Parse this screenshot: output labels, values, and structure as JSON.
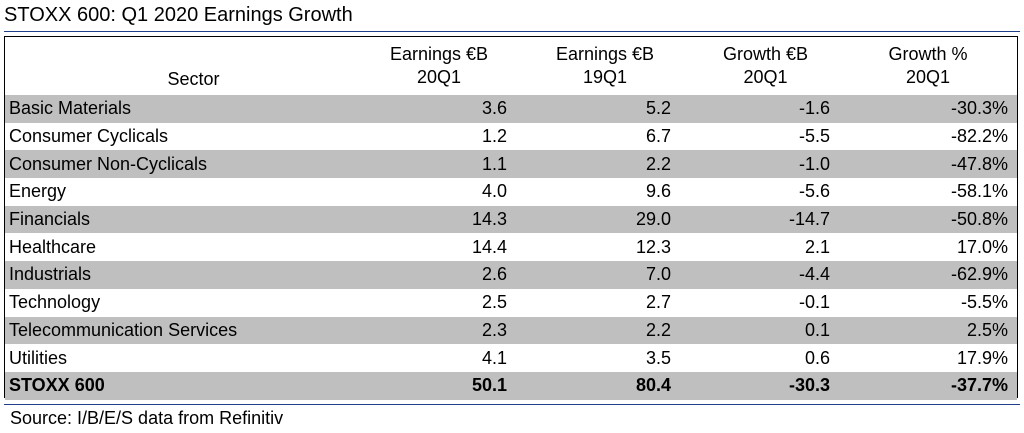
{
  "title": "STOXX 600: Q1 2020 Earnings Growth",
  "table": {
    "headers": {
      "sector": "Sector",
      "earnings_20q1": [
        "Earnings €B",
        "20Q1"
      ],
      "earnings_19q1": [
        "Earnings €B",
        "19Q1"
      ],
      "growth_eur": [
        "Growth €B",
        "20Q1"
      ],
      "growth_pct": [
        "Growth %",
        "20Q1"
      ]
    },
    "rows": [
      {
        "sector": "Basic Materials",
        "e20": "3.6",
        "e19": "5.2",
        "g": "-1.6",
        "gp": "-30.3%"
      },
      {
        "sector": "Consumer Cyclicals",
        "e20": "1.2",
        "e19": "6.7",
        "g": "-5.5",
        "gp": "-82.2%"
      },
      {
        "sector": "Consumer Non-Cyclicals",
        "e20": "1.1",
        "e19": "2.2",
        "g": "-1.0",
        "gp": "-47.8%"
      },
      {
        "sector": "Energy",
        "e20": "4.0",
        "e19": "9.6",
        "g": "-5.6",
        "gp": "-58.1%"
      },
      {
        "sector": "Financials",
        "e20": "14.3",
        "e19": "29.0",
        "g": "-14.7",
        "gp": "-50.8%"
      },
      {
        "sector": "Healthcare",
        "e20": "14.4",
        "e19": "12.3",
        "g": "2.1",
        "gp": "17.0%"
      },
      {
        "sector": "Industrials",
        "e20": "2.6",
        "e19": "7.0",
        "g": "-4.4",
        "gp": "-62.9%"
      },
      {
        "sector": "Technology",
        "e20": "2.5",
        "e19": "2.7",
        "g": "-0.1",
        "gp": "-5.5%"
      },
      {
        "sector": "Telecommunication Services",
        "e20": "2.3",
        "e19": "2.2",
        "g": "0.1",
        "gp": "2.5%"
      },
      {
        "sector": "Utilities",
        "e20": "4.1",
        "e19": "3.5",
        "g": "0.6",
        "gp": "17.9%"
      }
    ],
    "total": {
      "sector": "STOXX 600",
      "e20": "50.1",
      "e19": "80.4",
      "g": "-30.3",
      "gp": "-37.7%"
    }
  },
  "source": "Source: I/B/E/S data from Refinitiv",
  "colors": {
    "rule": "#1f3f8a",
    "row_shade": "#bfbfbf"
  }
}
